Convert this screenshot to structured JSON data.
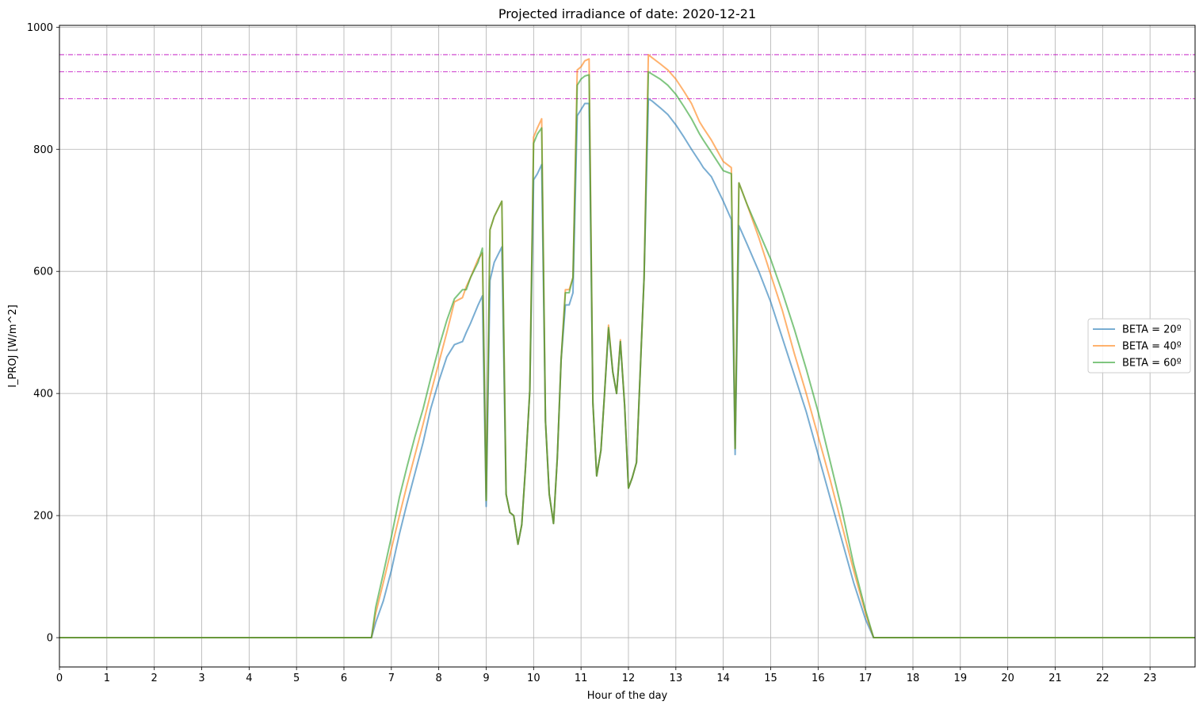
{
  "chart_data": {
    "type": "line",
    "title": "Projected irradiance of date: 2020-12-21",
    "xlabel": "Hour of the day",
    "ylabel": "I_PROJ [W/m^2]",
    "xlim": [
      0,
      23.95
    ],
    "ylim": [
      -48,
      1003
    ],
    "xticks": [
      0,
      1,
      2,
      3,
      4,
      5,
      6,
      7,
      8,
      9,
      10,
      11,
      12,
      13,
      14,
      15,
      16,
      17,
      18,
      19,
      20,
      21,
      22,
      23
    ],
    "yticks": [
      0,
      200,
      400,
      600,
      800,
      1000
    ],
    "grid": true,
    "legend_position": "center-right",
    "reference_lines": [
      {
        "y": 883,
        "color": "#bf00bf"
      },
      {
        "y": 927,
        "color": "#bf00bf"
      },
      {
        "y": 955,
        "color": "#bf00bf"
      }
    ],
    "series": [
      {
        "name": "BETA = 20º",
        "color": "#1f77b4",
        "x": [
          0,
          6.58,
          6.67,
          6.83,
          7.0,
          7.17,
          7.33,
          7.5,
          7.67,
          7.83,
          8.0,
          8.17,
          8.33,
          8.5,
          8.58,
          8.67,
          8.83,
          8.92,
          9.0,
          9.08,
          9.17,
          9.33,
          9.42,
          9.5,
          9.58,
          9.67,
          9.75,
          9.83,
          9.92,
          10.0,
          10.08,
          10.17,
          10.25,
          10.33,
          10.42,
          10.5,
          10.58,
          10.67,
          10.75,
          10.83,
          10.92,
          11.0,
          11.08,
          11.17,
          11.25,
          11.33,
          11.42,
          11.5,
          11.58,
          11.67,
          11.75,
          11.83,
          11.92,
          12.0,
          12.08,
          12.17,
          12.33,
          12.42,
          12.5,
          12.67,
          12.83,
          13.0,
          13.17,
          13.33,
          13.5,
          13.58,
          13.75,
          14.0,
          14.17,
          14.25,
          14.33,
          14.5,
          14.75,
          15.0,
          15.25,
          15.5,
          15.75,
          16.0,
          16.25,
          16.5,
          16.75,
          17.0,
          17.17,
          17.33,
          23.95
        ],
        "values": [
          0,
          0,
          25,
          60,
          110,
          170,
          220,
          270,
          320,
          375,
          420,
          460,
          480,
          485,
          500,
          515,
          545,
          560,
          215,
          585,
          615,
          640,
          235,
          205,
          200,
          153,
          185,
          280,
          405,
          750,
          760,
          775,
          355,
          235,
          187,
          295,
          455,
          545,
          545,
          565,
          855,
          865,
          875,
          875,
          385,
          265,
          307,
          405,
          505,
          435,
          400,
          485,
          380,
          245,
          262,
          287,
          590,
          883,
          879,
          868,
          857,
          840,
          820,
          800,
          780,
          770,
          755,
          715,
          685,
          300,
          675,
          645,
          600,
          550,
          490,
          430,
          370,
          300,
          230,
          160,
          90,
          30,
          0,
          0,
          0
        ]
      },
      {
        "name": "BETA = 40º",
        "color": "#ff7f0e",
        "x": [
          0,
          6.58,
          6.67,
          6.83,
          7.0,
          7.17,
          7.33,
          7.5,
          7.67,
          7.83,
          8.0,
          8.17,
          8.33,
          8.5,
          8.58,
          8.67,
          8.83,
          8.92,
          9.0,
          9.08,
          9.17,
          9.33,
          9.42,
          9.5,
          9.58,
          9.67,
          9.75,
          9.83,
          9.92,
          10.0,
          10.08,
          10.17,
          10.25,
          10.33,
          10.42,
          10.5,
          10.58,
          10.67,
          10.75,
          10.83,
          10.92,
          11.0,
          11.08,
          11.17,
          11.25,
          11.33,
          11.42,
          11.5,
          11.58,
          11.67,
          11.75,
          11.83,
          11.92,
          12.0,
          12.08,
          12.17,
          12.33,
          12.42,
          12.5,
          12.67,
          12.83,
          13.0,
          13.17,
          13.33,
          13.5,
          13.58,
          13.75,
          14.0,
          14.17,
          14.25,
          14.33,
          14.5,
          14.75,
          15.0,
          15.25,
          15.5,
          15.75,
          16.0,
          16.25,
          16.5,
          16.75,
          17.0,
          17.17,
          17.33,
          23.95
        ],
        "values": [
          0,
          0,
          40,
          90,
          145,
          200,
          250,
          300,
          350,
          400,
          450,
          500,
          550,
          557,
          575,
          590,
          620,
          630,
          225,
          668,
          690,
          715,
          235,
          205,
          200,
          153,
          185,
          280,
          405,
          820,
          835,
          850,
          355,
          235,
          187,
          295,
          455,
          570,
          570,
          590,
          930,
          935,
          945,
          948,
          385,
          265,
          307,
          405,
          512,
          435,
          400,
          488,
          380,
          245,
          262,
          287,
          590,
          955,
          950,
          940,
          930,
          915,
          895,
          875,
          845,
          835,
          815,
          780,
          770,
          310,
          745,
          710,
          655,
          595,
          535,
          465,
          400,
          330,
          260,
          185,
          110,
          40,
          0,
          0,
          0
        ]
      },
      {
        "name": "BETA = 60º",
        "color": "#2ca02c",
        "x": [
          0,
          6.58,
          6.67,
          6.83,
          7.0,
          7.17,
          7.33,
          7.5,
          7.67,
          7.83,
          8.0,
          8.17,
          8.33,
          8.5,
          8.58,
          8.67,
          8.83,
          8.92,
          9.0,
          9.08,
          9.17,
          9.33,
          9.42,
          9.5,
          9.58,
          9.67,
          9.75,
          9.83,
          9.92,
          10.0,
          10.08,
          10.17,
          10.25,
          10.33,
          10.42,
          10.5,
          10.58,
          10.67,
          10.75,
          10.83,
          10.92,
          11.0,
          11.08,
          11.17,
          11.25,
          11.33,
          11.42,
          11.5,
          11.58,
          11.67,
          11.75,
          11.83,
          11.92,
          12.0,
          12.08,
          12.17,
          12.33,
          12.42,
          12.5,
          12.67,
          12.83,
          13.0,
          13.17,
          13.33,
          13.5,
          13.58,
          13.75,
          14.0,
          14.17,
          14.25,
          14.33,
          14.5,
          14.75,
          15.0,
          15.25,
          15.5,
          15.75,
          16.0,
          16.25,
          16.5,
          16.75,
          17.0,
          17.17,
          17.33,
          23.95
        ],
        "values": [
          0,
          0,
          50,
          105,
          165,
          230,
          280,
          330,
          375,
          425,
          475,
          520,
          555,
          570,
          570,
          590,
          615,
          638,
          225,
          668,
          690,
          715,
          235,
          205,
          200,
          153,
          185,
          280,
          405,
          810,
          825,
          835,
          355,
          235,
          187,
          295,
          455,
          565,
          565,
          590,
          905,
          915,
          920,
          922,
          385,
          265,
          307,
          405,
          508,
          435,
          400,
          485,
          380,
          245,
          262,
          287,
          590,
          927,
          923,
          915,
          905,
          890,
          870,
          850,
          825,
          815,
          795,
          765,
          760,
          310,
          745,
          710,
          665,
          620,
          565,
          505,
          440,
          370,
          290,
          210,
          120,
          45,
          0,
          0,
          0
        ]
      }
    ]
  }
}
